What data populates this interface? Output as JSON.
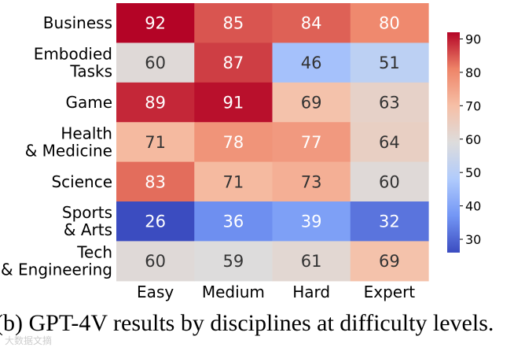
{
  "colors": {
    "cmap": [
      "#3b4cc0",
      "#7396f5",
      "#b0cbfc",
      "#dddcdc",
      "#f6bfa6",
      "#ee8468",
      "#b40426"
    ],
    "text_dark": "#333333",
    "text_light": "#ffffff"
  },
  "chart_data": {
    "type": "heatmap",
    "title": "",
    "row_labels": [
      [
        "Business"
      ],
      [
        "Embodied",
        "Tasks"
      ],
      [
        "Game"
      ],
      [
        "Health",
        "& Medicine"
      ],
      [
        "Science"
      ],
      [
        "Sports",
        "& Arts"
      ],
      [
        "Tech",
        "& Engineering"
      ]
    ],
    "col_labels": [
      "Easy",
      "Medium",
      "Hard",
      "Expert"
    ],
    "values": [
      [
        92,
        85,
        84,
        80
      ],
      [
        60,
        87,
        46,
        51
      ],
      [
        89,
        91,
        69,
        63
      ],
      [
        71,
        78,
        77,
        64
      ],
      [
        83,
        71,
        73,
        60
      ],
      [
        26,
        36,
        39,
        32
      ],
      [
        60,
        59,
        61,
        69
      ]
    ],
    "value_range": [
      26,
      92
    ],
    "colorbar": {
      "ticks": [
        30,
        40,
        50,
        60,
        70,
        80,
        90
      ],
      "colormap": "coolwarm"
    }
  },
  "caption": "(b) GPT-4V results by disciplines at difficulty levels.",
  "watermark": "大数据文摘"
}
